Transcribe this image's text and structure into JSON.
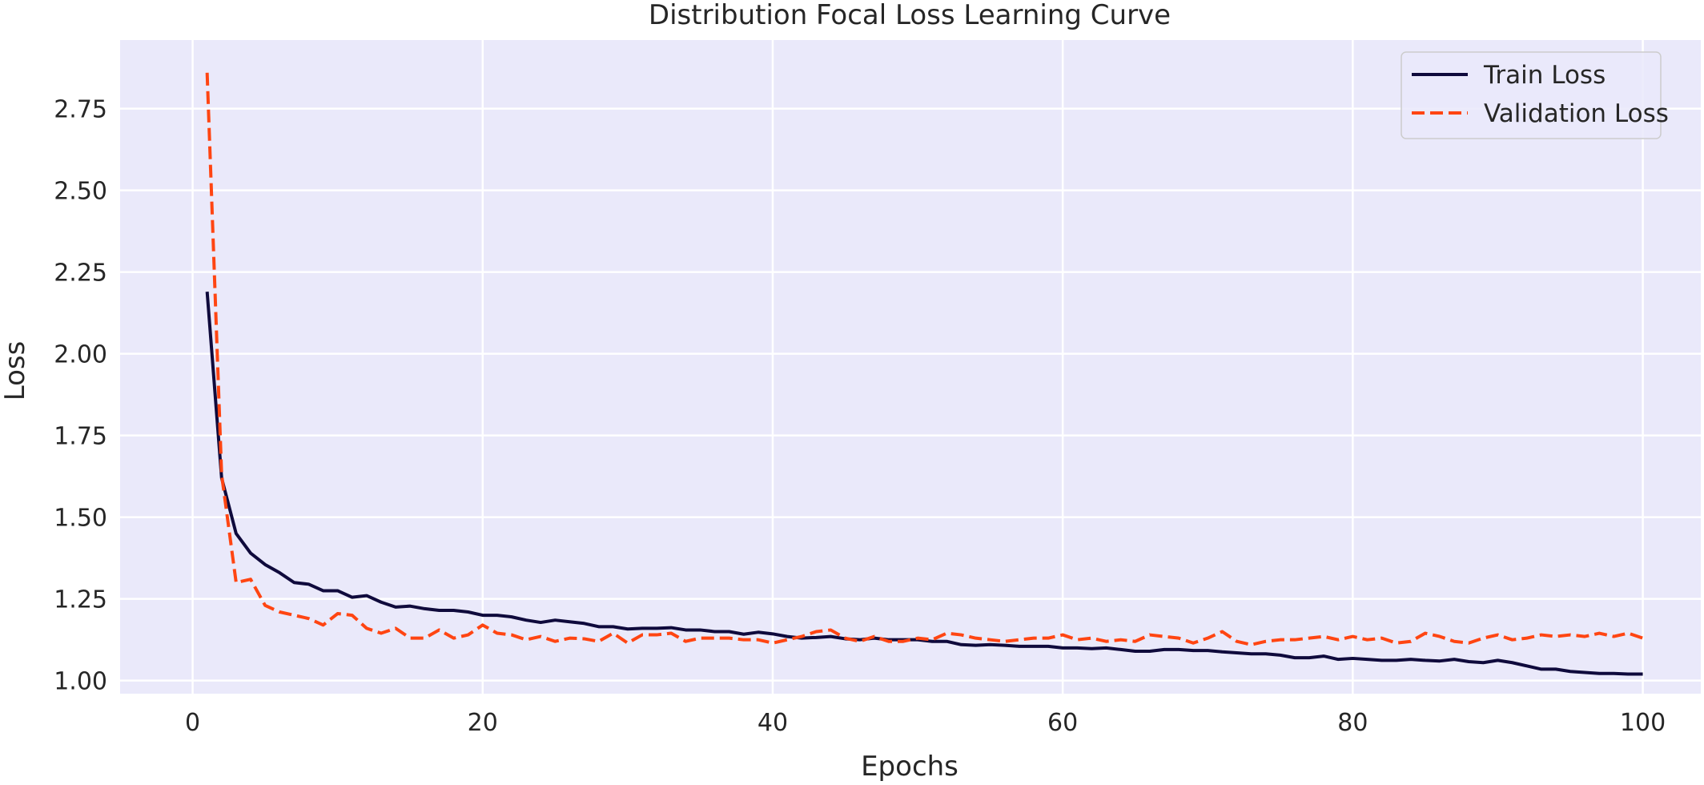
{
  "chart_data": {
    "type": "line",
    "title": "Distribution Focal Loss Learning Curve",
    "xlabel": "Epochs",
    "ylabel": "Loss",
    "xlim": [
      -5,
      104
    ],
    "ylim": [
      0.96,
      2.96
    ],
    "xticks": [
      0,
      20,
      40,
      60,
      80,
      100
    ],
    "yticks": [
      1.0,
      1.25,
      1.5,
      1.75,
      2.0,
      2.25,
      2.5,
      2.75
    ],
    "ytick_labels": [
      "1.00",
      "1.25",
      "1.50",
      "1.75",
      "2.00",
      "2.25",
      "2.50",
      "2.75"
    ],
    "grid": true,
    "legend_position": "top-right",
    "x": [
      1,
      2,
      3,
      4,
      5,
      6,
      7,
      8,
      9,
      10,
      11,
      12,
      13,
      14,
      15,
      16,
      17,
      18,
      19,
      20,
      21,
      22,
      23,
      24,
      25,
      26,
      27,
      28,
      29,
      30,
      31,
      32,
      33,
      34,
      35,
      36,
      37,
      38,
      39,
      40,
      41,
      42,
      43,
      44,
      45,
      46,
      47,
      48,
      49,
      50,
      51,
      52,
      53,
      54,
      55,
      56,
      57,
      58,
      59,
      60,
      61,
      62,
      63,
      64,
      65,
      66,
      67,
      68,
      69,
      70,
      71,
      72,
      73,
      74,
      75,
      76,
      77,
      78,
      79,
      80,
      81,
      82,
      83,
      84,
      85,
      86,
      87,
      88,
      89,
      90,
      91,
      92,
      93,
      94,
      95,
      96,
      97,
      98,
      99,
      100
    ],
    "series": [
      {
        "name": "Train Loss",
        "color": "#0f0a3c",
        "style": "solid",
        "values": [
          2.19,
          1.62,
          1.45,
          1.39,
          1.355,
          1.33,
          1.3,
          1.295,
          1.275,
          1.275,
          1.255,
          1.26,
          1.24,
          1.225,
          1.228,
          1.22,
          1.215,
          1.215,
          1.21,
          1.2,
          1.2,
          1.195,
          1.185,
          1.178,
          1.185,
          1.18,
          1.175,
          1.165,
          1.165,
          1.158,
          1.16,
          1.16,
          1.162,
          1.155,
          1.155,
          1.15,
          1.15,
          1.142,
          1.148,
          1.143,
          1.135,
          1.13,
          1.132,
          1.135,
          1.128,
          1.125,
          1.13,
          1.125,
          1.125,
          1.125,
          1.12,
          1.12,
          1.11,
          1.108,
          1.11,
          1.108,
          1.105,
          1.105,
          1.105,
          1.1,
          1.1,
          1.098,
          1.1,
          1.095,
          1.09,
          1.09,
          1.095,
          1.095,
          1.092,
          1.092,
          1.088,
          1.085,
          1.082,
          1.082,
          1.078,
          1.07,
          1.07,
          1.075,
          1.065,
          1.068,
          1.065,
          1.062,
          1.062,
          1.065,
          1.062,
          1.06,
          1.065,
          1.058,
          1.055,
          1.062,
          1.055,
          1.045,
          1.035,
          1.035,
          1.028,
          1.025,
          1.022,
          1.022,
          1.02,
          1.02
        ]
      },
      {
        "name": "Validation Loss",
        "color": "#ff4512",
        "style": "dashed",
        "values": [
          2.86,
          1.63,
          1.3,
          1.31,
          1.23,
          1.21,
          1.2,
          1.19,
          1.17,
          1.205,
          1.2,
          1.16,
          1.145,
          1.16,
          1.13,
          1.13,
          1.155,
          1.13,
          1.14,
          1.17,
          1.145,
          1.14,
          1.125,
          1.135,
          1.12,
          1.13,
          1.128,
          1.12,
          1.145,
          1.115,
          1.14,
          1.14,
          1.145,
          1.12,
          1.13,
          1.13,
          1.13,
          1.125,
          1.125,
          1.115,
          1.125,
          1.135,
          1.15,
          1.155,
          1.13,
          1.12,
          1.135,
          1.12,
          1.12,
          1.13,
          1.125,
          1.145,
          1.14,
          1.13,
          1.125,
          1.12,
          1.125,
          1.13,
          1.13,
          1.14,
          1.125,
          1.13,
          1.12,
          1.125,
          1.12,
          1.14,
          1.135,
          1.13,
          1.115,
          1.13,
          1.15,
          1.12,
          1.11,
          1.12,
          1.125,
          1.125,
          1.13,
          1.135,
          1.125,
          1.135,
          1.125,
          1.13,
          1.115,
          1.12,
          1.145,
          1.135,
          1.12,
          1.115,
          1.13,
          1.14,
          1.125,
          1.13,
          1.14,
          1.135,
          1.14,
          1.135,
          1.145,
          1.135,
          1.145,
          1.13
        ]
      }
    ]
  }
}
